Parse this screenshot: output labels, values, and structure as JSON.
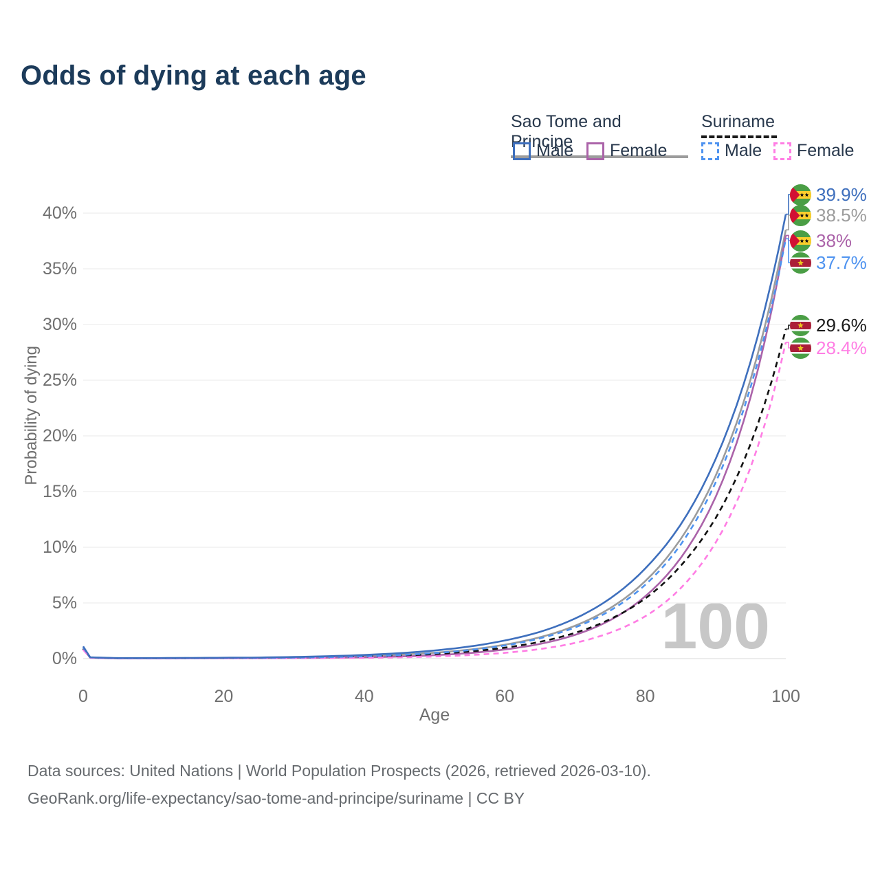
{
  "title": "Odds of dying at each age",
  "watermark": "100",
  "legend": {
    "groups": [
      {
        "name": "Sao Tome and Principe",
        "line_color": "#9c9c9c",
        "line_style": "solid",
        "items": [
          {
            "label": "Male",
            "color": "#3e6fbd",
            "style": "solid"
          },
          {
            "label": "Female",
            "color": "#ab63a9",
            "style": "solid"
          }
        ]
      },
      {
        "name": "Suriname",
        "line_color": "#1a1a1a",
        "line_style": "dashed",
        "items": [
          {
            "label": "Male",
            "color": "#4e93f0",
            "style": "dashed"
          },
          {
            "label": "Female",
            "color": "#ff7de4",
            "style": "dashed"
          }
        ]
      }
    ]
  },
  "chart_data": {
    "type": "line",
    "title": "Odds of dying at each age",
    "xlabel": "Age",
    "ylabel": "Probability of dying",
    "xlim": [
      0,
      100
    ],
    "ylim": [
      0,
      42
    ],
    "x_ticks": [
      0,
      20,
      40,
      60,
      80,
      100
    ],
    "y_ticks": [
      0,
      5,
      10,
      15,
      20,
      25,
      30,
      35,
      40
    ],
    "y_tick_suffix": "%",
    "grid": "horizontal-only",
    "legend_position": "top-right",
    "x": [
      0,
      1,
      5,
      10,
      15,
      20,
      25,
      30,
      35,
      40,
      45,
      50,
      55,
      60,
      65,
      70,
      75,
      80,
      85,
      90,
      95,
      100
    ],
    "series": [
      {
        "name": "Sao Tome and Principe Male",
        "country": "Sao Tome and Principe",
        "sex": "Male",
        "color": "#3e6fbd",
        "dash": false,
        "values": [
          1.1,
          0.12,
          0.05,
          0.05,
          0.06,
          0.08,
          0.1,
          0.15,
          0.22,
          0.33,
          0.49,
          0.73,
          1.09,
          1.63,
          2.4,
          3.6,
          5.4,
          8.1,
          12.0,
          17.9,
          26.7,
          39.9
        ]
      },
      {
        "name": "Sao Tome and Principe Both sexes",
        "country": "Sao Tome and Principe",
        "sex": "Both",
        "color": "#9c9c9c",
        "dash": false,
        "values": [
          0.95,
          0.1,
          0.04,
          0.04,
          0.05,
          0.06,
          0.08,
          0.1,
          0.15,
          0.23,
          0.35,
          0.53,
          0.81,
          1.25,
          1.92,
          2.95,
          4.53,
          6.96,
          10.7,
          16.4,
          25.1,
          38.5
        ]
      },
      {
        "name": "Sao Tome and Principe Female",
        "country": "Sao Tome and Principe",
        "sex": "Female",
        "color": "#ab63a9",
        "dash": false,
        "values": [
          0.85,
          0.09,
          0.02,
          0.02,
          0.03,
          0.03,
          0.04,
          0.06,
          0.09,
          0.12,
          0.19,
          0.31,
          0.5,
          0.82,
          1.32,
          2.13,
          3.45,
          5.6,
          9.0,
          14.5,
          23.5,
          38.0
        ]
      },
      {
        "name": "Suriname Male",
        "country": "Suriname",
        "sex": "Male",
        "color": "#4e93f0",
        "dash": true,
        "values": [
          1.0,
          0.11,
          0.04,
          0.04,
          0.05,
          0.06,
          0.07,
          0.09,
          0.14,
          0.21,
          0.32,
          0.5,
          0.77,
          1.18,
          1.82,
          2.8,
          4.31,
          6.63,
          10.2,
          15.8,
          24.4,
          37.7
        ]
      },
      {
        "name": "Suriname Both sexes",
        "country": "Suriname",
        "sex": "Both",
        "color": "#111111",
        "dash": true,
        "values": [
          0.9,
          0.1,
          0.03,
          0.03,
          0.04,
          0.05,
          0.06,
          0.08,
          0.12,
          0.18,
          0.27,
          0.42,
          0.64,
          0.98,
          1.51,
          2.31,
          3.54,
          5.4,
          8.3,
          12.6,
          19.3,
          29.6
        ]
      },
      {
        "name": "Suriname Female",
        "country": "Suriname",
        "sex": "Female",
        "color": "#ff7de4",
        "dash": true,
        "values": [
          0.8,
          0.08,
          0.01,
          0.01,
          0.02,
          0.02,
          0.02,
          0.03,
          0.05,
          0.07,
          0.12,
          0.19,
          0.32,
          0.52,
          0.86,
          1.41,
          2.33,
          3.8,
          6.3,
          10.4,
          17.2,
          28.4
        ]
      }
    ]
  },
  "end_labels": [
    {
      "text": "39.9%",
      "value": 39.9,
      "color": "#3e6fbd",
      "flag": "stp",
      "series_index": 0
    },
    {
      "text": "38.5%",
      "value": 38.5,
      "color": "#9c9c9c",
      "flag": "stp",
      "series_index": 1
    },
    {
      "text": "38%",
      "value": 38.0,
      "color": "#ab63a9",
      "flag": "stp",
      "series_index": 2
    },
    {
      "text": "37.7%",
      "value": 37.7,
      "color": "#4e93f0",
      "flag": "sur",
      "series_index": 3
    },
    {
      "text": "29.6%",
      "value": 29.6,
      "color": "#1a1a1a",
      "flag": "sur",
      "series_index": 4
    },
    {
      "text": "28.4%",
      "value": 28.4,
      "color": "#ff7de4",
      "flag": "sur",
      "series_index": 5
    }
  ],
  "footer": {
    "line1": "Data sources: United Nations | World Population Prospects (2026, retrieved 2026-03-10).",
    "line2": "GeoRank.org/life-expectancy/sao-tome-and-principe/suriname | CC BY"
  }
}
